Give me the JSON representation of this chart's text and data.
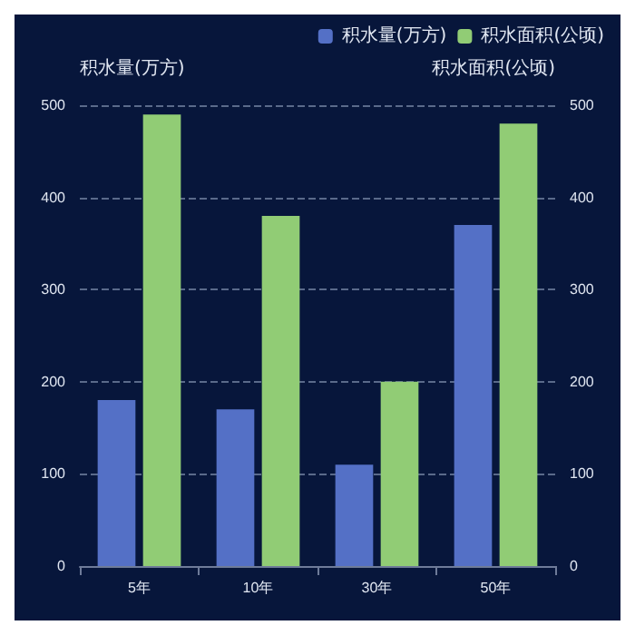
{
  "chart_data": {
    "type": "bar",
    "categories": [
      "5年",
      "10年",
      "30年",
      "50年"
    ],
    "ylabel": "积水量(万方)",
    "y2label": "积水面积(公顷)",
    "ylim": [
      0,
      500
    ],
    "yticks": [
      0,
      100,
      200,
      300,
      400,
      500
    ],
    "y2lim": [
      0,
      500
    ],
    "y2ticks": [
      0,
      100,
      200,
      300,
      400,
      500
    ],
    "grid": "y",
    "legend": "top right",
    "series": [
      {
        "name": "积水量(万方)",
        "color": "#5470c6",
        "values": [
          180,
          170,
          110,
          370
        ]
      },
      {
        "name": "积水面积(公顷)",
        "color": "#91cc75",
        "values": [
          490,
          380,
          200,
          480
        ],
        "axis": "y2"
      }
    ]
  }
}
